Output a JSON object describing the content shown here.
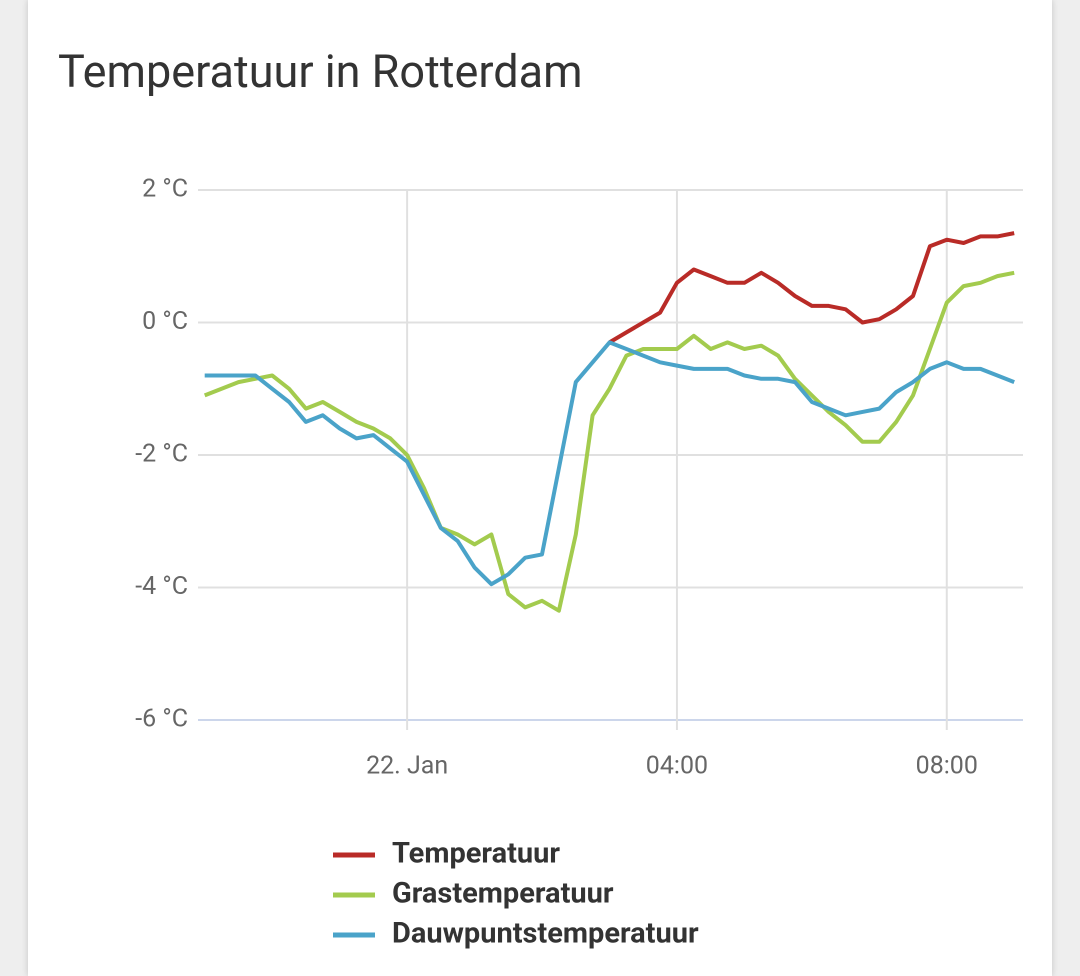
{
  "chart_data": {
    "type": "line",
    "title": "Temperatuur in Rotterdam",
    "x": [
      -3,
      -2.75,
      -2.5,
      -2.25,
      -2,
      -1.75,
      -1.5,
      -1.25,
      -1,
      -0.75,
      -0.5,
      -0.25,
      0,
      0.25,
      0.5,
      0.75,
      1,
      1.25,
      1.5,
      1.75,
      2,
      2.25,
      2.5,
      2.75,
      3,
      3.25,
      3.5,
      3.75,
      4,
      4.25,
      4.5,
      4.75,
      5,
      5.25,
      5.5,
      5.75,
      6,
      6.25,
      6.5,
      6.75,
      7,
      7.25,
      7.5,
      7.75,
      8,
      8.25,
      8.5,
      8.75,
      9
    ],
    "series": [
      {
        "name": "Temperatuur",
        "color": "#b92b27",
        "values": [
          null,
          null,
          null,
          null,
          null,
          null,
          null,
          null,
          null,
          null,
          null,
          null,
          null,
          null,
          null,
          null,
          null,
          null,
          null,
          null,
          null,
          null,
          null,
          null,
          -0.3,
          -0.15,
          0.0,
          0.15,
          0.6,
          0.8,
          0.7,
          0.6,
          0.6,
          0.75,
          0.6,
          0.4,
          0.25,
          0.25,
          0.2,
          0.0,
          0.05,
          0.2,
          0.4,
          1.15,
          1.25,
          1.2,
          1.3,
          1.3,
          1.35
        ]
      },
      {
        "name": "Grastemperatuur",
        "color": "#a3cb4e",
        "values": [
          -1.1,
          -1.0,
          -0.9,
          -0.85,
          -0.8,
          -1.0,
          -1.3,
          -1.2,
          -1.35,
          -1.5,
          -1.6,
          -1.75,
          -2.0,
          -2.5,
          -3.1,
          -3.2,
          -3.35,
          -3.2,
          -4.1,
          -4.3,
          -4.2,
          -4.35,
          -3.2,
          -1.4,
          -1.0,
          -0.5,
          -0.4,
          -0.4,
          -0.4,
          -0.2,
          -0.4,
          -0.3,
          -0.4,
          -0.35,
          -0.5,
          -0.85,
          -1.1,
          -1.35,
          -1.55,
          -1.8,
          -1.8,
          -1.5,
          -1.1,
          -0.4,
          0.3,
          0.55,
          0.6,
          0.7,
          0.75
        ]
      },
      {
        "name": "Dauwpuntstemperatuur",
        "color": "#4aa3c9",
        "values": [
          -0.8,
          -0.8,
          -0.8,
          -0.8,
          -1.0,
          -1.2,
          -1.5,
          -1.4,
          -1.6,
          -1.75,
          -1.7,
          -1.9,
          -2.1,
          -2.6,
          -3.1,
          -3.3,
          -3.7,
          -3.95,
          -3.8,
          -3.55,
          -3.5,
          -2.2,
          -0.9,
          -0.6,
          -0.3,
          -0.4,
          -0.5,
          -0.6,
          -0.65,
          -0.7,
          -0.7,
          -0.7,
          -0.8,
          -0.85,
          -0.85,
          -0.9,
          -1.2,
          -1.3,
          -1.4,
          -1.35,
          -1.3,
          -1.05,
          -0.9,
          -0.7,
          -0.6,
          -0.7,
          -0.7,
          -0.8,
          -0.9
        ]
      }
    ],
    "xlim": [
      -3.1,
      9.13
    ],
    "xticks": [
      {
        "value": 0,
        "label": "22. Jan"
      },
      {
        "value": 4,
        "label": "04:00"
      },
      {
        "value": 8,
        "label": "08:00"
      }
    ],
    "ylim": [
      -6,
      2
    ],
    "yticks": [
      {
        "value": 2,
        "label": "2 °C"
      },
      {
        "value": 0,
        "label": "0 °C"
      },
      {
        "value": -2,
        "label": "-2 °C"
      },
      {
        "value": -4,
        "label": "-4 °C"
      },
      {
        "value": -6,
        "label": "-6 °C"
      }
    ],
    "grid": true
  }
}
